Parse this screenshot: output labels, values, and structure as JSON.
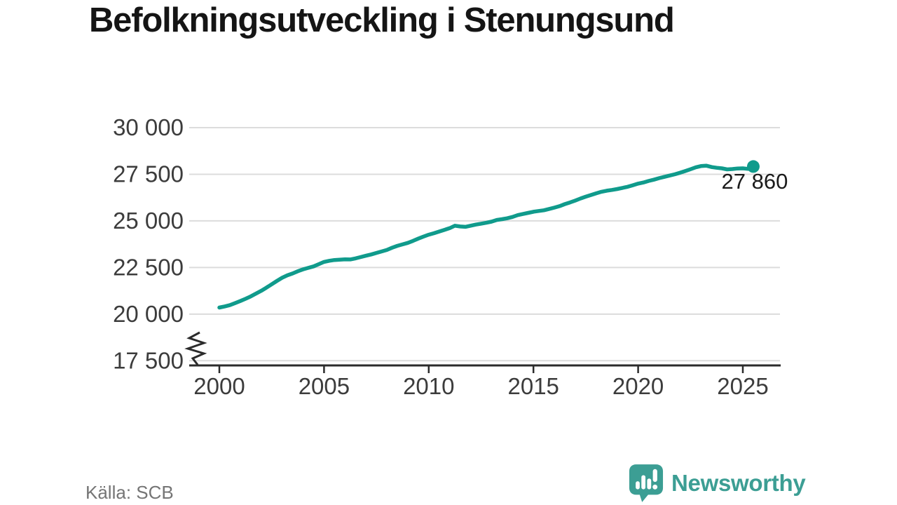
{
  "title": "Befolkningsutveckling i Stenungsund",
  "source": "Källa: SCB",
  "branding": {
    "name": "Newsworthy"
  },
  "colors": {
    "background": "#ffffff",
    "line": "#109b8c",
    "grid": "#dcdcdc",
    "axis": "#2b2b2b",
    "axis_label": "#3c3c3c",
    "title": "#151515",
    "value_label": "#1b1b1b",
    "source": "#757575",
    "logo": "#3c9e94",
    "logo_glyph": "#ffffff"
  },
  "chart_data": {
    "type": "line",
    "title": "Befolkningsutveckling i Stenungsund",
    "xlabel": "",
    "ylabel": "",
    "grid": "horizontal",
    "legend": "none",
    "xlim": [
      1998.6,
      2026.8
    ],
    "ylim": [
      17500,
      30000
    ],
    "y_axis_break": true,
    "x_ticks": [
      2000,
      2005,
      2010,
      2015,
      2020,
      2025
    ],
    "y_ticks": [
      {
        "value": 30000,
        "label": "30 000"
      },
      {
        "value": 27500,
        "label": "27 500"
      },
      {
        "value": 25000,
        "label": "25 000"
      },
      {
        "value": 22500,
        "label": "22 500"
      },
      {
        "value": 20000,
        "label": "20 000"
      },
      {
        "value": 17500,
        "label": "17 500"
      }
    ],
    "x": [
      2000,
      2000.25,
      2000.5,
      2000.75,
      2001,
      2001.25,
      2001.5,
      2001.75,
      2002,
      2002.25,
      2002.5,
      2002.75,
      2003,
      2003.25,
      2003.5,
      2003.75,
      2004,
      2004.25,
      2004.5,
      2004.75,
      2005,
      2005.25,
      2005.5,
      2005.75,
      2006,
      2006.25,
      2006.5,
      2006.75,
      2007,
      2007.25,
      2007.5,
      2007.75,
      2008,
      2008.25,
      2008.5,
      2008.75,
      2009,
      2009.25,
      2009.5,
      2009.75,
      2010,
      2010.25,
      2010.5,
      2010.75,
      2011,
      2011.25,
      2011.5,
      2011.75,
      2012,
      2012.25,
      2012.5,
      2012.75,
      2013,
      2013.25,
      2013.5,
      2013.75,
      2014,
      2014.25,
      2014.5,
      2014.75,
      2015,
      2015.25,
      2015.5,
      2015.75,
      2016,
      2016.25,
      2016.5,
      2016.75,
      2017,
      2017.25,
      2017.5,
      2017.75,
      2018,
      2018.25,
      2018.5,
      2018.75,
      2019,
      2019.25,
      2019.5,
      2019.75,
      2020,
      2020.25,
      2020.5,
      2020.75,
      2021,
      2021.25,
      2021.5,
      2021.75,
      2022,
      2022.25,
      2022.5,
      2022.75,
      2023,
      2023.25,
      2023.5,
      2023.75,
      2024,
      2024.25,
      2024.5,
      2024.75,
      2025,
      2025.25,
      2025.5
    ],
    "values": [
      20350,
      20410,
      20480,
      20590,
      20700,
      20820,
      20950,
      21100,
      21250,
      21420,
      21600,
      21780,
      21950,
      22080,
      22180,
      22300,
      22400,
      22480,
      22560,
      22680,
      22800,
      22860,
      22900,
      22920,
      22940,
      22930,
      22990,
      23060,
      23130,
      23200,
      23280,
      23360,
      23440,
      23560,
      23660,
      23740,
      23820,
      23930,
      24050,
      24160,
      24260,
      24340,
      24430,
      24520,
      24610,
      24740,
      24700,
      24680,
      24740,
      24800,
      24850,
      24900,
      24960,
      25050,
      25090,
      25140,
      25210,
      25310,
      25370,
      25430,
      25490,
      25530,
      25570,
      25640,
      25710,
      25790,
      25900,
      25990,
      26090,
      26200,
      26300,
      26390,
      26480,
      26560,
      26620,
      26660,
      26710,
      26770,
      26830,
      26910,
      27000,
      27060,
      27140,
      27210,
      27290,
      27360,
      27430,
      27500,
      27580,
      27670,
      27770,
      27870,
      27940,
      27960,
      27890,
      27850,
      27820,
      27760,
      27780,
      27810,
      27820,
      27790,
      27860
    ],
    "end_point": {
      "x": 2025.5,
      "value": 27860,
      "label": "27 860"
    }
  }
}
